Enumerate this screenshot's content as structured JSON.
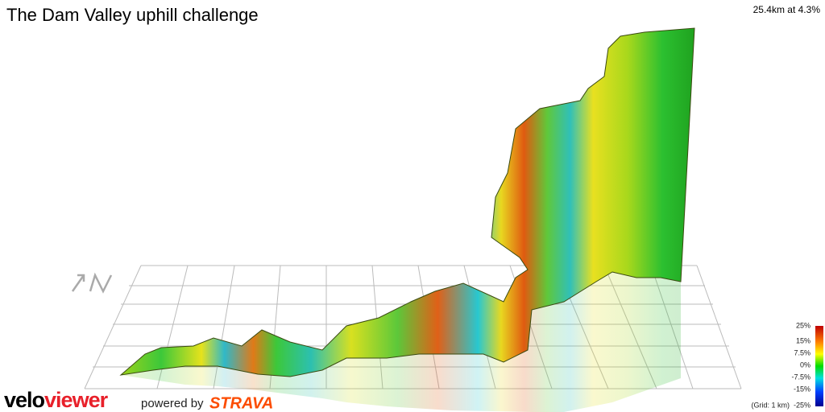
{
  "header": {
    "title": "The Dam Valley uphill challenge",
    "summary": "25.4km at 4.3%"
  },
  "legend": {
    "labels": [
      "25%",
      "15%",
      "7.5%",
      "0%",
      "-7.5%",
      "-15%",
      "-25%"
    ],
    "grid_note": "(Grid: 1 km)"
  },
  "footer": {
    "logo": {
      "velo": "velo",
      "viewer": "viewer"
    },
    "powered_by": "powered by",
    "strava": "STRAVA"
  }
}
